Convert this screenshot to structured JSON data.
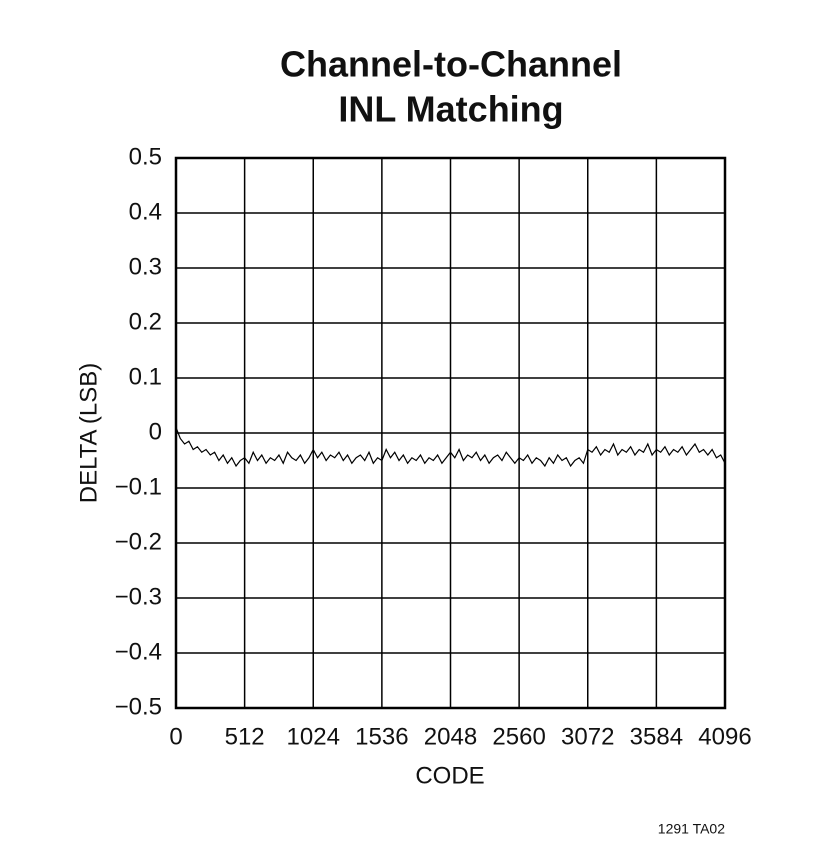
{
  "chart_data": {
    "type": "line",
    "title": [
      "Channel-to-Channel",
      "INL Matching"
    ],
    "xlabel": "CODE",
    "ylabel": "DELTA (LSB)",
    "footnote": "1291 TA02",
    "color": "#000000",
    "grid": true,
    "xlim": [
      0,
      4096
    ],
    "xticks": [
      0,
      512,
      1024,
      1536,
      2048,
      2560,
      3072,
      3584,
      4096
    ],
    "ylim": [
      -0.5,
      0.5
    ],
    "yticks": [
      {
        "value": -0.5,
        "label": "−0.5"
      },
      {
        "value": -0.4,
        "label": "−0.4"
      },
      {
        "value": -0.3,
        "label": "−0.3"
      },
      {
        "value": -0.2,
        "label": "−0.2"
      },
      {
        "value": -0.1,
        "label": "−0.1"
      },
      0,
      0.1,
      0.2,
      0.3,
      0.4,
      0.5
    ],
    "x": [
      0,
      32,
      64,
      96,
      128,
      160,
      192,
      224,
      256,
      288,
      320,
      352,
      384,
      416,
      448,
      480,
      512,
      544,
      576,
      608,
      640,
      672,
      704,
      736,
      768,
      800,
      832,
      864,
      896,
      928,
      960,
      992,
      1024,
      1056,
      1088,
      1120,
      1152,
      1184,
      1216,
      1248,
      1280,
      1312,
      1344,
      1376,
      1408,
      1440,
      1472,
      1504,
      1536,
      1568,
      1600,
      1632,
      1664,
      1696,
      1728,
      1760,
      1792,
      1824,
      1856,
      1888,
      1920,
      1952,
      1984,
      2016,
      2048,
      2080,
      2112,
      2144,
      2176,
      2208,
      2240,
      2272,
      2304,
      2336,
      2368,
      2400,
      2432,
      2464,
      2496,
      2528,
      2560,
      2592,
      2624,
      2656,
      2688,
      2720,
      2752,
      2784,
      2816,
      2848,
      2880,
      2912,
      2944,
      2976,
      3008,
      3040,
      3072,
      3104,
      3136,
      3168,
      3200,
      3232,
      3264,
      3296,
      3328,
      3360,
      3392,
      3424,
      3456,
      3488,
      3520,
      3552,
      3584,
      3616,
      3648,
      3680,
      3712,
      3744,
      3776,
      3808,
      3840,
      3872,
      3904,
      3936,
      3968,
      4000,
      4032,
      4064,
      4096
    ],
    "values": [
      0.01,
      -0.01,
      -0.02,
      -0.015,
      -0.03,
      -0.025,
      -0.035,
      -0.03,
      -0.04,
      -0.035,
      -0.05,
      -0.04,
      -0.055,
      -0.045,
      -0.06,
      -0.05,
      -0.045,
      -0.055,
      -0.035,
      -0.05,
      -0.04,
      -0.055,
      -0.045,
      -0.05,
      -0.04,
      -0.055,
      -0.035,
      -0.045,
      -0.05,
      -0.04,
      -0.055,
      -0.045,
      -0.03,
      -0.045,
      -0.035,
      -0.05,
      -0.04,
      -0.045,
      -0.035,
      -0.05,
      -0.04,
      -0.055,
      -0.045,
      -0.04,
      -0.05,
      -0.035,
      -0.055,
      -0.045,
      -0.05,
      -0.03,
      -0.045,
      -0.035,
      -0.05,
      -0.04,
      -0.055,
      -0.045,
      -0.05,
      -0.04,
      -0.055,
      -0.045,
      -0.05,
      -0.04,
      -0.055,
      -0.045,
      -0.035,
      -0.045,
      -0.03,
      -0.05,
      -0.04,
      -0.045,
      -0.035,
      -0.05,
      -0.04,
      -0.055,
      -0.045,
      -0.04,
      -0.05,
      -0.035,
      -0.045,
      -0.055,
      -0.045,
      -0.05,
      -0.04,
      -0.055,
      -0.045,
      -0.05,
      -0.06,
      -0.045,
      -0.055,
      -0.04,
      -0.05,
      -0.045,
      -0.06,
      -0.05,
      -0.045,
      -0.055,
      -0.03,
      -0.035,
      -0.025,
      -0.04,
      -0.03,
      -0.035,
      -0.02,
      -0.04,
      -0.03,
      -0.035,
      -0.025,
      -0.04,
      -0.03,
      -0.035,
      -0.02,
      -0.04,
      -0.03,
      -0.035,
      -0.025,
      -0.04,
      -0.03,
      -0.035,
      -0.025,
      -0.04,
      -0.03,
      -0.02,
      -0.035,
      -0.03,
      -0.04,
      -0.03,
      -0.045,
      -0.04,
      -0.055
    ]
  }
}
